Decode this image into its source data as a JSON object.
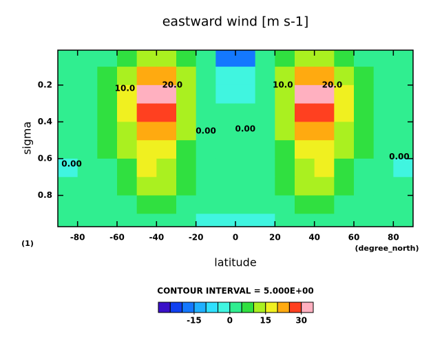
{
  "chart_data": {
    "type": "contour",
    "title": "eastward wind [m s-1]",
    "xlabel": "latitude",
    "ylabel": "sigma",
    "yunit": "(1)",
    "xunit": "(degree_north)",
    "note": "CONTOUR INTERVAL = 5.000E+00",
    "xlim": [
      -90,
      90
    ],
    "ylim": [
      0.01,
      0.97
    ],
    "y_reversed": true,
    "xticks": [
      -80,
      -60,
      -40,
      -20,
      0,
      20,
      40,
      60,
      80
    ],
    "yticks": [
      0.2,
      0.4,
      0.6,
      0.8
    ],
    "x": [
      -85,
      -75,
      -65,
      -55,
      -45,
      -35,
      -25,
      -15,
      -5,
      5,
      15,
      25,
      35,
      45,
      55,
      65,
      75,
      85
    ],
    "y": [
      0.05,
      0.15,
      0.25,
      0.35,
      0.45,
      0.55,
      0.65,
      0.75,
      0.85,
      0.95
    ],
    "z": [
      [
        2,
        3,
        4,
        8,
        12,
        10,
        5,
        0,
        -20,
        -20,
        0,
        5,
        10,
        12,
        8,
        4,
        3,
        2
      ],
      [
        2,
        3,
        6,
        14,
        22,
        20,
        10,
        2,
        -5,
        -5,
        2,
        10,
        20,
        22,
        14,
        6,
        3,
        2
      ],
      [
        2,
        4,
        8,
        18,
        30,
        30,
        14,
        3,
        -1,
        -1,
        3,
        14,
        30,
        30,
        18,
        8,
        4,
        2
      ],
      [
        2,
        3,
        7,
        16,
        27,
        27,
        13,
        3,
        0,
        0,
        3,
        13,
        27,
        27,
        16,
        7,
        3,
        2
      ],
      [
        1,
        3,
        6,
        13,
        23,
        22,
        11,
        3,
        1,
        1,
        3,
        11,
        22,
        23,
        13,
        6,
        3,
        1
      ],
      [
        0,
        2,
        5,
        10,
        18,
        17,
        9,
        3,
        2,
        2,
        3,
        9,
        17,
        18,
        10,
        5,
        2,
        0
      ],
      [
        -1,
        1,
        4,
        8,
        15,
        14,
        7,
        3,
        2,
        2,
        3,
        7,
        14,
        15,
        8,
        4,
        1,
        -1
      ],
      [
        0,
        1,
        3,
        6,
        12,
        11,
        5,
        2,
        1,
        1,
        2,
        5,
        11,
        12,
        6,
        3,
        1,
        0
      ],
      [
        0,
        1,
        2,
        4,
        8,
        8,
        4,
        1,
        0,
        0,
        1,
        4,
        8,
        8,
        4,
        2,
        1,
        0
      ],
      [
        0,
        0,
        1,
        2,
        3,
        3,
        1,
        -1,
        -4,
        -4,
        -1,
        1,
        3,
        3,
        2,
        1,
        0,
        0
      ]
    ],
    "contour_labels": [
      {
        "text": "10.0",
        "x": -56,
        "y": 0.22
      },
      {
        "text": "20.0",
        "x": -32,
        "y": 0.2
      },
      {
        "text": "0.00",
        "x": -83,
        "y": 0.63
      },
      {
        "text": "0.00",
        "x": -15,
        "y": 0.45
      },
      {
        "text": "0.00",
        "x": 5,
        "y": 0.44
      },
      {
        "text": "10.0",
        "x": 24,
        "y": 0.2
      },
      {
        "text": "20.0",
        "x": 49,
        "y": 0.2
      },
      {
        "text": "0.00",
        "x": 83,
        "y": 0.59
      }
    ],
    "colorbar": {
      "levels": [
        -30,
        -25,
        -20,
        -15,
        -10,
        -5,
        0,
        5,
        10,
        15,
        20,
        25,
        30,
        35
      ],
      "colors": [
        "#3a10c8",
        "#1040f0",
        "#1478ff",
        "#20b0ff",
        "#30e0ff",
        "#40f5e0",
        "#30ee90",
        "#30e040",
        "#aaf020",
        "#f0f020",
        "#ffaa10",
        "#ff4020",
        "#ffb0c0"
      ],
      "ticks": [
        -15,
        0,
        15,
        30
      ]
    }
  }
}
